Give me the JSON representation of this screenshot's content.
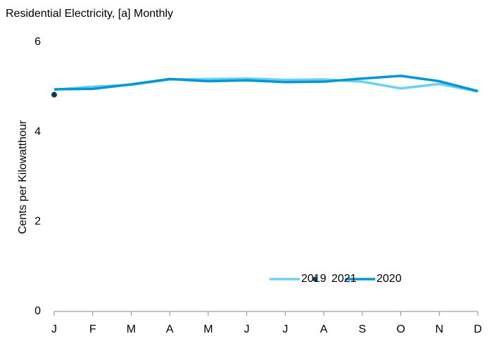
{
  "chart_data": {
    "type": "line",
    "title": "Residential Electricity, [a] Monthly",
    "y_label": "Cents per Kilowatthour",
    "categories": [
      "J",
      "F",
      "M",
      "A",
      "M",
      "J",
      "J",
      "A",
      "S",
      "O",
      "N",
      "D"
    ],
    "series": [
      {
        "name": "2019",
        "color": "#6dcff6",
        "values": [
          4.94,
          5.01,
          5.05,
          5.17,
          5.18,
          5.19,
          5.16,
          5.17,
          5.12,
          4.97,
          5.07,
          4.9
        ]
      },
      {
        "name": "2020",
        "color": "#0096d6",
        "values": [
          4.95,
          4.96,
          5.06,
          5.18,
          5.13,
          5.15,
          5.11,
          5.12,
          5.19,
          5.25,
          5.13,
          4.91
        ]
      },
      {
        "name": "2021",
        "color": "#003b5c",
        "values": [
          4.83,
          null,
          null,
          null,
          null,
          null,
          null,
          null,
          null,
          null,
          null,
          null
        ]
      }
    ],
    "ylim": [
      0,
      6
    ],
    "yticks": [
      0,
      2,
      4,
      6
    ],
    "grid": false,
    "legend": "lower right"
  }
}
